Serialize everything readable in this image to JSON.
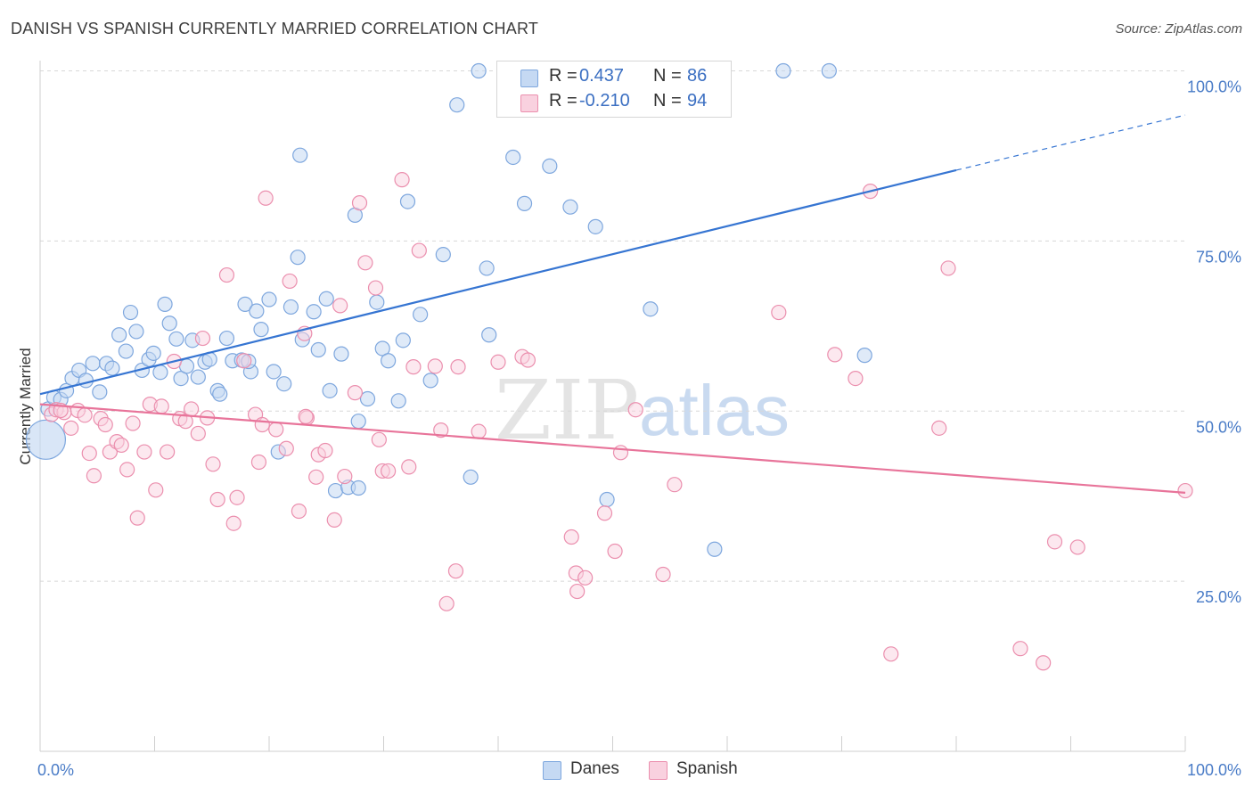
{
  "header": {
    "title": "DANISH VS SPANISH CURRENTLY MARRIED CORRELATION CHART",
    "source": "Source: ZipAtlas.com"
  },
  "legend": {
    "danes": {
      "r_label": "R =",
      "r_value": "0.437",
      "n_label": "N =",
      "n_value": "86"
    },
    "spanish": {
      "r_label": "R =",
      "r_value": "-0.210",
      "n_label": "N =",
      "n_value": "94"
    }
  },
  "bottom_legend": {
    "danes": "Danes",
    "spanish": "Spanish"
  },
  "watermark": {
    "zip": "ZIP",
    "atlas": "atlas"
  },
  "colors": {
    "danes_fill": "#c5d9f3",
    "danes_stroke": "#7ea7de",
    "danes_line": "#3675d2",
    "spanish_fill": "#f9d1df",
    "spanish_stroke": "#eb8fae",
    "spanish_line": "#e8749a",
    "tick_text": "#4a7cc7",
    "grid": "#d8d8d8"
  },
  "chart_data": {
    "type": "scatter",
    "title": "DANISH VS SPANISH CURRENTLY MARRIED CORRELATION CHART",
    "xlabel": "",
    "ylabel": "Currently Married",
    "xlim": [
      0,
      100
    ],
    "ylim": [
      0,
      105
    ],
    "x_tick_labels": [
      "0.0%",
      "100.0%"
    ],
    "y_ticks": [
      25,
      50,
      75,
      100
    ],
    "y_tick_labels": [
      "25.0%",
      "50.0%",
      "75.0%",
      "100.0%"
    ],
    "grid": "horizontal dashed",
    "legend_position": "top-center",
    "series": [
      {
        "name": "Danes",
        "r": 0.437,
        "n": 86,
        "trend": {
          "x": [
            0,
            80
          ],
          "y": [
            52.5,
            85.4
          ],
          "dashed_extension_to": [
            100,
            93.5
          ]
        },
        "points": [
          [
            0.7,
            50.3
          ],
          [
            1.2,
            52
          ],
          [
            1.8,
            51.7
          ],
          [
            2.3,
            53
          ],
          [
            2.8,
            54.8
          ],
          [
            3.4,
            56
          ],
          [
            4,
            54.5
          ],
          [
            4.6,
            57
          ],
          [
            5.2,
            52.8
          ],
          [
            5.8,
            57
          ],
          [
            6.3,
            56.3
          ],
          [
            6.9,
            61.2
          ],
          [
            7.5,
            58.8
          ],
          [
            7.9,
            64.5
          ],
          [
            8.4,
            61.7
          ],
          [
            8.9,
            56
          ],
          [
            9.5,
            57.6
          ],
          [
            9.9,
            58.5
          ],
          [
            10.5,
            55.7
          ],
          [
            10.9,
            65.7
          ],
          [
            11.3,
            62.9
          ],
          [
            11.9,
            60.6
          ],
          [
            12.3,
            54.8
          ],
          [
            12.8,
            56.6
          ],
          [
            13.3,
            60.4
          ],
          [
            13.8,
            55
          ],
          [
            14.4,
            57.2
          ],
          [
            14.8,
            57.6
          ],
          [
            15.5,
            53
          ],
          [
            15.7,
            52.5
          ],
          [
            16.3,
            60.7
          ],
          [
            16.8,
            57.4
          ],
          [
            17.6,
            57.5
          ],
          [
            17.9,
            65.7
          ],
          [
            18.4,
            55.8
          ],
          [
            18.9,
            64.7
          ],
          [
            19.3,
            62
          ],
          [
            20,
            66.4
          ],
          [
            20.4,
            55.8
          ],
          [
            20.8,
            44
          ],
          [
            21.3,
            54
          ],
          [
            21.9,
            65.3
          ],
          [
            22.5,
            72.6
          ],
          [
            22.9,
            60.5
          ],
          [
            23.9,
            64.6
          ],
          [
            24.3,
            59
          ],
          [
            25,
            66.5
          ],
          [
            25.3,
            53
          ],
          [
            25.8,
            38.3
          ],
          [
            26.3,
            58.4
          ],
          [
            26.9,
            38.8
          ],
          [
            27.5,
            78.8
          ],
          [
            27.8,
            48.5
          ],
          [
            28.6,
            51.8
          ],
          [
            29.4,
            66
          ],
          [
            29.9,
            59.2
          ],
          [
            30.4,
            57.4
          ],
          [
            31.3,
            51.5
          ],
          [
            31.7,
            60.4
          ],
          [
            32.1,
            80.8
          ],
          [
            33.2,
            64.2
          ],
          [
            34.1,
            54.5
          ],
          [
            35.2,
            73
          ],
          [
            36.4,
            95
          ],
          [
            37.6,
            40.3
          ],
          [
            38.3,
            100
          ],
          [
            39,
            71
          ],
          [
            39.2,
            61.2
          ],
          [
            41.1,
            100
          ],
          [
            41.3,
            87.3
          ],
          [
            42.3,
            80.5
          ],
          [
            44.4,
            100
          ],
          [
            44.5,
            86
          ],
          [
            46.3,
            80
          ],
          [
            48.5,
            77.1
          ],
          [
            49.1,
            100
          ],
          [
            49.5,
            37
          ],
          [
            53.3,
            65
          ],
          [
            58.9,
            29.7
          ],
          [
            64.9,
            100
          ],
          [
            68.9,
            100
          ],
          [
            72,
            58.2
          ],
          [
            22.7,
            87.6
          ],
          [
            18.2,
            57.3
          ],
          [
            0.5,
            45.8
          ],
          [
            27.8,
            38.7
          ]
        ]
      },
      {
        "name": "Spanish",
        "r": -0.21,
        "n": 94,
        "trend": {
          "x": [
            0,
            100
          ],
          "y": [
            51,
            38
          ]
        },
        "points": [
          [
            1,
            49.5
          ],
          [
            1.4,
            50.2
          ],
          [
            2.1,
            49.8
          ],
          [
            2.7,
            47.5
          ],
          [
            3.3,
            50.1
          ],
          [
            3.9,
            49.4
          ],
          [
            4.3,
            43.8
          ],
          [
            4.7,
            40.5
          ],
          [
            5.3,
            48.9
          ],
          [
            5.7,
            48
          ],
          [
            6.1,
            44
          ],
          [
            6.7,
            45.5
          ],
          [
            7.1,
            45
          ],
          [
            7.6,
            41.4
          ],
          [
            8.1,
            48.2
          ],
          [
            8.5,
            34.3
          ],
          [
            9.1,
            44
          ],
          [
            9.6,
            51
          ],
          [
            10.1,
            38.4
          ],
          [
            10.6,
            50.7
          ],
          [
            11.1,
            44
          ],
          [
            11.7,
            57.3
          ],
          [
            12.2,
            48.9
          ],
          [
            12.7,
            48.5
          ],
          [
            13.2,
            50.3
          ],
          [
            13.8,
            46.7
          ],
          [
            14.2,
            60.7
          ],
          [
            14.6,
            49
          ],
          [
            15.1,
            42.2
          ],
          [
            15.5,
            37
          ],
          [
            16.3,
            70
          ],
          [
            16.9,
            33.5
          ],
          [
            17.2,
            37.3
          ],
          [
            17.8,
            57.4
          ],
          [
            18.8,
            49.5
          ],
          [
            19.1,
            42.5
          ],
          [
            19.4,
            48
          ],
          [
            19.7,
            81.3
          ],
          [
            20.6,
            47.3
          ],
          [
            21.5,
            44.5
          ],
          [
            21.8,
            69.1
          ],
          [
            22.6,
            35.3
          ],
          [
            23.1,
            61.4
          ],
          [
            23.3,
            49
          ],
          [
            24.1,
            40.3
          ],
          [
            24.3,
            43.6
          ],
          [
            24.9,
            44.2
          ],
          [
            25.7,
            34
          ],
          [
            26.2,
            65.5
          ],
          [
            26.6,
            40.4
          ],
          [
            27.5,
            52.7
          ],
          [
            27.9,
            80.6
          ],
          [
            28.4,
            71.8
          ],
          [
            29.3,
            68.1
          ],
          [
            29.6,
            45.8
          ],
          [
            29.9,
            41.2
          ],
          [
            30.4,
            41.2
          ],
          [
            31.6,
            84
          ],
          [
            32.2,
            41.8
          ],
          [
            32.6,
            56.5
          ],
          [
            33.1,
            73.6
          ],
          [
            34.5,
            56.6
          ],
          [
            35,
            47.2
          ],
          [
            35.5,
            21.7
          ],
          [
            36.3,
            26.5
          ],
          [
            36.5,
            56.5
          ],
          [
            38.3,
            47
          ],
          [
            40,
            57.2
          ],
          [
            42.1,
            58
          ],
          [
            42.6,
            57.5
          ],
          [
            46.4,
            31.5
          ],
          [
            46.8,
            26.2
          ],
          [
            46.9,
            23.5
          ],
          [
            47.6,
            25.5
          ],
          [
            49.3,
            35
          ],
          [
            50.2,
            29.4
          ],
          [
            50.7,
            43.9
          ],
          [
            52,
            50.2
          ],
          [
            54.4,
            26
          ],
          [
            55.4,
            39.2
          ],
          [
            64.5,
            64.5
          ],
          [
            69.4,
            58.3
          ],
          [
            71.2,
            54.8
          ],
          [
            72.5,
            82.3
          ],
          [
            74.3,
            14.3
          ],
          [
            78.5,
            47.5
          ],
          [
            79.3,
            71
          ],
          [
            85.6,
            15.1
          ],
          [
            87.6,
            13
          ],
          [
            88.6,
            30.8
          ],
          [
            90.6,
            30
          ],
          [
            100,
            38.3
          ],
          [
            1.8,
            50.1
          ],
          [
            23.2,
            49.2
          ]
        ]
      }
    ]
  }
}
